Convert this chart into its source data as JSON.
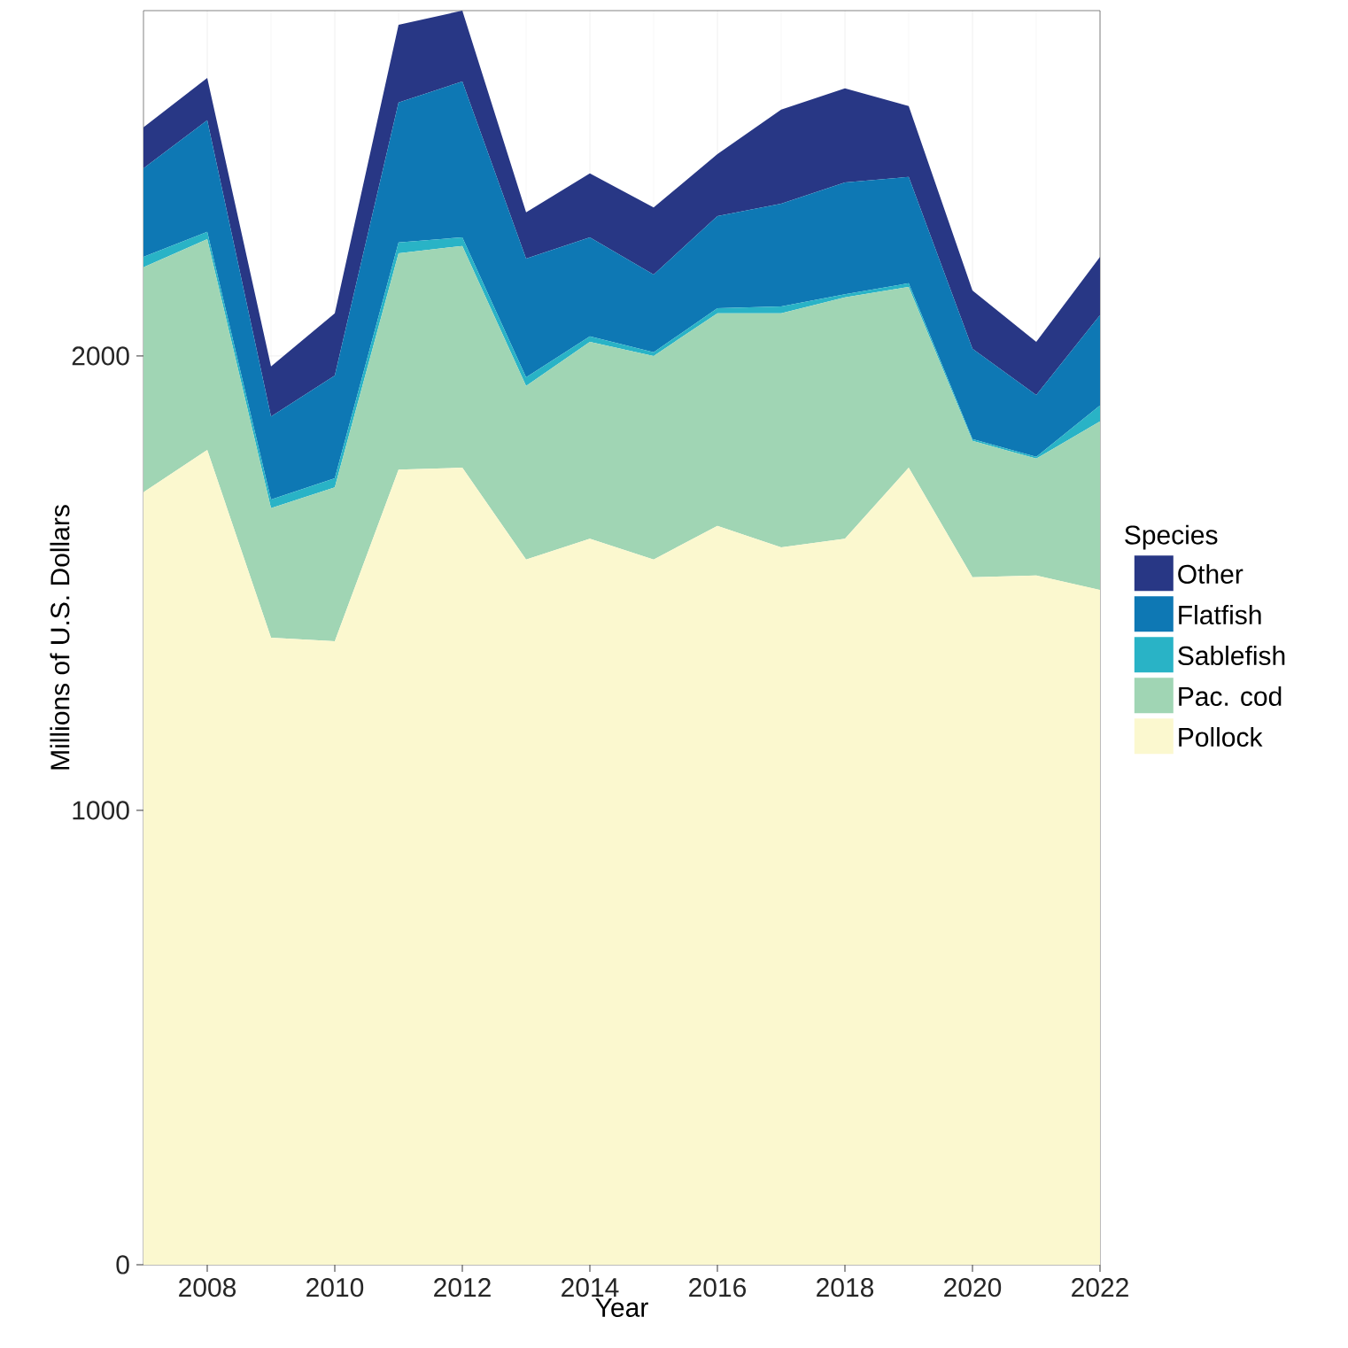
{
  "chart_data": {
    "type": "area",
    "stacked": true,
    "xlabel": "Year",
    "ylabel": "Millions of U.S. Dollars",
    "legend_title": "Species",
    "legend": "right",
    "grid": true,
    "x": [
      2007,
      2008,
      2009,
      2010,
      2011,
      2012,
      2013,
      2014,
      2015,
      2016,
      2017,
      2018,
      2019,
      2020,
      2021,
      2022
    ],
    "xlim": [
      2007,
      2022
    ],
    "xticks": [
      2008,
      2010,
      2012,
      2014,
      2016,
      2018,
      2020,
      2022
    ],
    "ylim": [
      0,
      2760
    ],
    "yticks": [
      0,
      1000,
      2000
    ],
    "series": [
      {
        "name": "Pollock",
        "color": "#fbf8cf",
        "values": [
          1700,
          1793,
          1380,
          1372,
          1750,
          1754,
          1552,
          1598,
          1552,
          1626,
          1579,
          1598,
          1754,
          1513,
          1517,
          1485
        ]
      },
      {
        "name": "Pac. cod",
        "color": "#a0d5b4",
        "values": [
          495,
          464,
          285,
          339,
          476,
          488,
          382,
          433,
          448,
          468,
          515,
          531,
          398,
          300,
          257,
          371
        ]
      },
      {
        "name": "Sablefish",
        "color": "#29b3c6",
        "values": [
          23,
          16,
          19,
          20,
          24,
          19,
          19,
          12,
          8,
          11,
          15,
          7,
          8,
          4,
          4,
          35
        ]
      },
      {
        "name": "Flatfish",
        "color": "#0e78b4",
        "values": [
          195,
          246,
          183,
          226,
          308,
          343,
          261,
          218,
          171,
          203,
          226,
          246,
          234,
          199,
          136,
          199
        ]
      },
      {
        "name": "Other",
        "color": "#283785",
        "values": [
          90,
          93,
          110,
          137,
          171,
          156,
          102,
          141,
          148,
          136,
          207,
          207,
          156,
          128,
          117,
          128
        ]
      }
    ]
  }
}
